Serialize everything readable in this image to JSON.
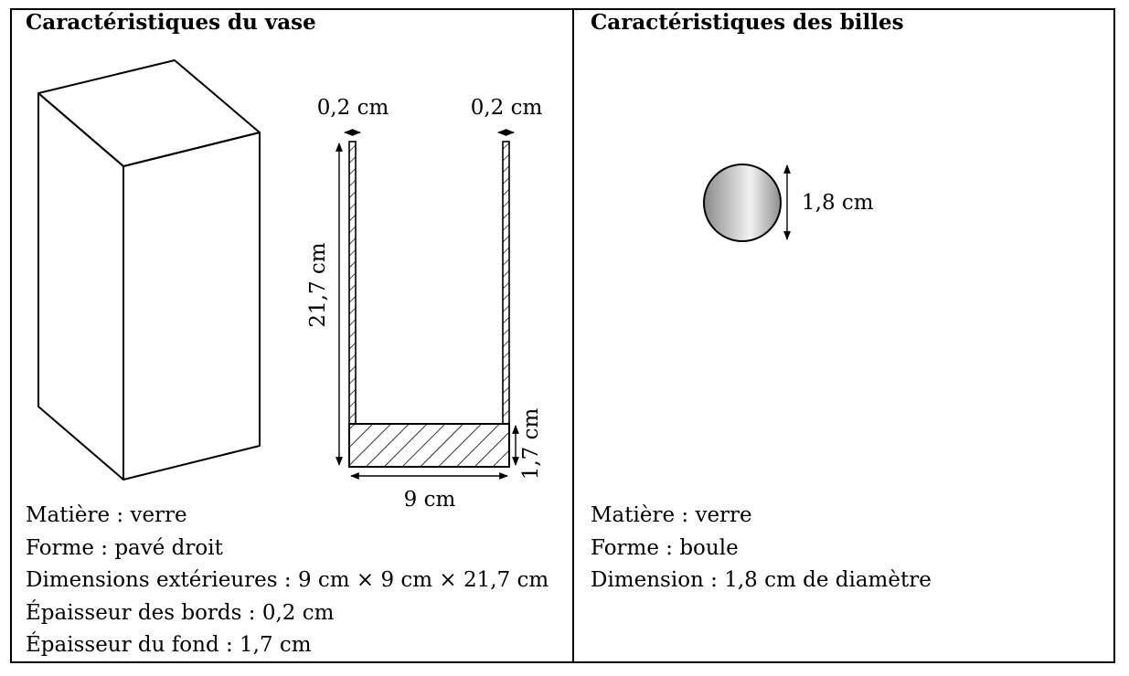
{
  "vase": {
    "heading": "Caractéristiques du vase",
    "dim_left_wall": "0,2 cm",
    "dim_right_wall": "0,2 cm",
    "dim_height": "21,7 cm",
    "dim_bottom": "1,7 cm",
    "dim_width": "9 cm",
    "lines": [
      "Matière : verre",
      "Forme : pavé droit",
      "Dimensions extérieures : 9 cm × 9 cm × 21,7 cm",
      "Épaisseur des bords : 0,2 cm",
      "Épaisseur du fond : 1,7 cm"
    ]
  },
  "billes": {
    "heading": "Caractéristiques des billes",
    "dim_diameter": "1,8 cm",
    "lines": [
      "Matière : verre",
      "Forme : boule",
      "Dimension : 1,8 cm de diamètre"
    ]
  }
}
